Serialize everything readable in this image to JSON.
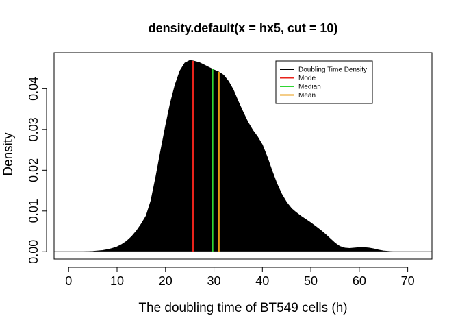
{
  "chart_data": {
    "type": "area",
    "title": "density.default(x = hx5, cut = 10)",
    "xlabel": "The doubling time of BT549 cells (h)",
    "ylabel": "Density",
    "xlim": [
      -3,
      75
    ],
    "ylim": [
      -0.0018,
      0.0488
    ],
    "xticks": [
      0,
      10,
      20,
      30,
      40,
      50,
      60,
      70
    ],
    "yticks": [
      0.0,
      0.01,
      0.02,
      0.03,
      0.04
    ],
    "ytick_labels": [
      "0.00",
      "0.01",
      "0.02",
      "0.03",
      "0.04"
    ],
    "grid": false,
    "legend_position": "top-right",
    "series": [
      {
        "name": "Doubling Time Density",
        "color": "#000000",
        "x": [
          -3,
          3,
          5,
          7,
          8,
          9,
          10,
          11,
          12,
          13,
          14,
          15,
          16,
          17,
          18,
          19,
          20,
          21,
          22,
          23,
          24,
          25,
          25.7,
          27,
          28,
          29,
          29.7,
          30,
          31,
          32,
          33,
          34,
          35,
          36,
          37,
          38,
          39,
          40,
          41,
          42,
          43,
          44,
          45,
          46,
          47,
          48,
          49,
          50,
          51,
          52,
          53,
          54,
          55,
          56,
          57,
          58,
          59,
          60,
          61,
          62,
          63,
          64,
          65,
          66,
          67,
          68,
          75
        ],
        "y": [
          0,
          0,
          0.0001,
          0.0003,
          0.0005,
          0.0008,
          0.0012,
          0.0018,
          0.0026,
          0.0037,
          0.0051,
          0.0068,
          0.0088,
          0.0125,
          0.0183,
          0.0247,
          0.0308,
          0.0364,
          0.041,
          0.0444,
          0.0463,
          0.0469,
          0.0468,
          0.0464,
          0.0458,
          0.0452,
          0.0448,
          0.0446,
          0.0441,
          0.0433,
          0.0418,
          0.0397,
          0.0369,
          0.0343,
          0.0318,
          0.0298,
          0.0282,
          0.0262,
          0.0232,
          0.0198,
          0.0167,
          0.0141,
          0.0121,
          0.0106,
          0.0096,
          0.0087,
          0.0079,
          0.0071,
          0.0062,
          0.0053,
          0.0043,
          0.0032,
          0.0021,
          0.0013,
          0.0009,
          0.0008,
          0.0009,
          0.001,
          0.001,
          0.0009,
          0.0007,
          0.0004,
          0.0002,
          0.0001,
          0,
          0,
          0
        ]
      }
    ],
    "vlines": [
      {
        "name": "Mode",
        "x": 25.7,
        "color": "#e8231b"
      },
      {
        "name": "Median",
        "x": 29.7,
        "color": "#2fd633"
      },
      {
        "name": "Mean",
        "x": 31.0,
        "color": "#e89b10"
      }
    ],
    "legend": [
      {
        "label": "Doubling Time Density",
        "color": "#000000"
      },
      {
        "label": "Mode",
        "color": "#e8231b"
      },
      {
        "label": "Median",
        "color": "#2fd633"
      },
      {
        "label": "Mean",
        "color": "#e89b10"
      }
    ]
  }
}
